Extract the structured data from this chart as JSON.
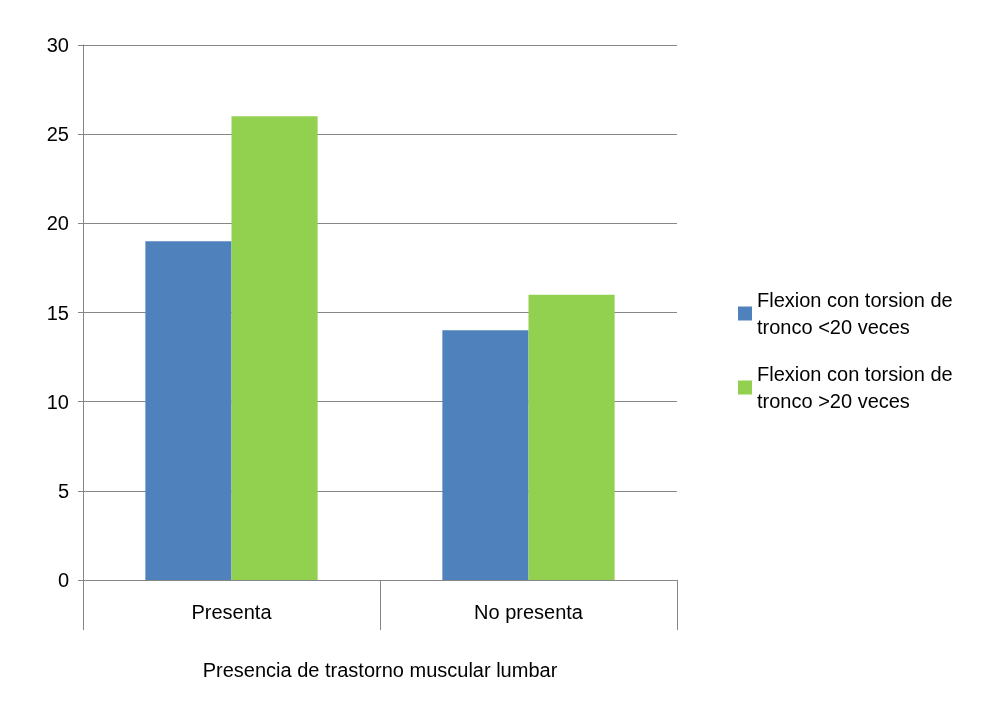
{
  "chart_data": {
    "type": "bar",
    "xlabel": "Presencia de trastorno muscular lumbar",
    "categories": [
      "Presenta",
      "No presenta"
    ],
    "series": [
      {
        "name": "Flexion con torsion de tronco <20 veces",
        "color": "#4f81bd",
        "values": [
          19,
          14
        ]
      },
      {
        "name": "Flexion con torsion de tronco >20 veces",
        "color": "#92d050",
        "values": [
          26,
          16
        ]
      }
    ],
    "ylim": [
      0,
      30
    ],
    "yticks": [
      0,
      5,
      10,
      15,
      20,
      25,
      30
    ],
    "grid": "y",
    "legend": "right"
  }
}
